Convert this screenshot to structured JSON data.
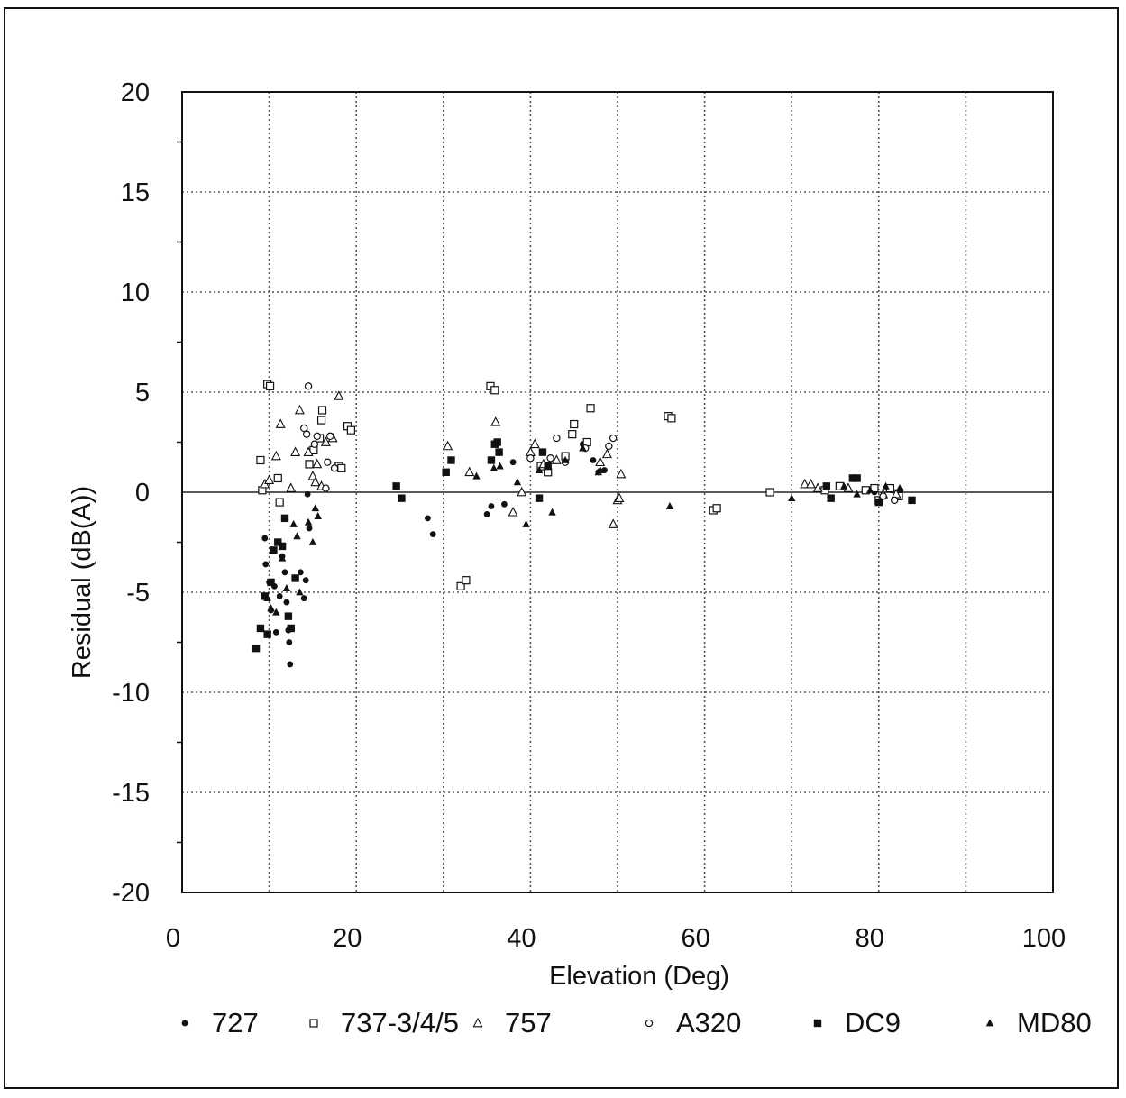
{
  "chart_data": {
    "type": "scatter",
    "title": "",
    "xlabel": "Elevation (Deg)",
    "ylabel": "Residual (dB(A))",
    "xlim": [
      0,
      100
    ],
    "ylim": [
      -20,
      20
    ],
    "x_ticks": [
      0,
      20,
      40,
      60,
      80,
      100
    ],
    "y_ticks": [
      20,
      15,
      10,
      5,
      0,
      -5,
      -10,
      -15,
      -20
    ],
    "grid": true,
    "legend_position": "bottom",
    "series": [
      {
        "name": "727",
        "marker": "small-filled-circle",
        "points": [
          [
            9.5,
            -2.3
          ],
          [
            9.6,
            -3.6
          ],
          [
            10.0,
            -4.5
          ],
          [
            10.2,
            -5.9
          ],
          [
            10.6,
            -4.7
          ],
          [
            10.8,
            -7.0
          ],
          [
            11.2,
            -5.2
          ],
          [
            11.5,
            -3.2
          ],
          [
            11.8,
            -4.0
          ],
          [
            12.0,
            -5.5
          ],
          [
            12.2,
            -6.9
          ],
          [
            12.3,
            -7.5
          ],
          [
            12.4,
            -8.6
          ],
          [
            13.6,
            -4.0
          ],
          [
            14.0,
            -5.3
          ],
          [
            14.2,
            -4.4
          ],
          [
            14.4,
            -0.1
          ],
          [
            14.6,
            -1.8
          ],
          [
            28.2,
            -1.3
          ],
          [
            28.8,
            -2.1
          ],
          [
            35.0,
            -1.1
          ],
          [
            35.5,
            -0.7
          ],
          [
            37.0,
            -0.6
          ],
          [
            38.0,
            1.5
          ],
          [
            42.0,
            1.1
          ],
          [
            46.0,
            2.4
          ],
          [
            47.2,
            1.6
          ],
          [
            47.8,
            1.0
          ],
          [
            48.5,
            1.1
          ],
          [
            75.8,
            0.3
          ],
          [
            79.5,
            0.0
          ],
          [
            81.5,
            0.1
          ],
          [
            82.5,
            0.1
          ]
        ]
      },
      {
        "name": "737-3/4/5",
        "marker": "open-square",
        "points": [
          [
            9.0,
            1.6
          ],
          [
            9.2,
            0.1
          ],
          [
            9.8,
            5.4
          ],
          [
            10.1,
            5.3
          ],
          [
            11.0,
            0.7
          ],
          [
            11.2,
            -0.5
          ],
          [
            14.6,
            1.4
          ],
          [
            15.1,
            2.1
          ],
          [
            15.8,
            2.7
          ],
          [
            16.0,
            3.6
          ],
          [
            16.1,
            4.1
          ],
          [
            18.0,
            1.3
          ],
          [
            18.3,
            1.2
          ],
          [
            19.0,
            3.3
          ],
          [
            19.4,
            3.1
          ],
          [
            32.0,
            -4.7
          ],
          [
            32.6,
            -4.4
          ],
          [
            35.4,
            5.3
          ],
          [
            35.9,
            5.1
          ],
          [
            41.2,
            1.3
          ],
          [
            42.0,
            1.0
          ],
          [
            44.0,
            1.8
          ],
          [
            44.8,
            2.9
          ],
          [
            45.0,
            3.4
          ],
          [
            46.5,
            2.5
          ],
          [
            46.9,
            4.2
          ],
          [
            55.8,
            3.8
          ],
          [
            56.2,
            3.7
          ],
          [
            61.0,
            -0.9
          ],
          [
            61.4,
            -0.8
          ],
          [
            67.5,
            0.0
          ],
          [
            73.8,
            0.1
          ],
          [
            75.5,
            0.3
          ],
          [
            78.5,
            0.1
          ],
          [
            79.5,
            0.2
          ],
          [
            80.0,
            -0.4
          ],
          [
            81.3,
            0.2
          ],
          [
            82.3,
            -0.2
          ]
        ]
      },
      {
        "name": "757",
        "marker": "open-triangle",
        "points": [
          [
            9.5,
            0.4
          ],
          [
            10.0,
            0.6
          ],
          [
            10.8,
            1.8
          ],
          [
            11.3,
            3.4
          ],
          [
            12.5,
            0.2
          ],
          [
            13.0,
            2.0
          ],
          [
            13.5,
            4.1
          ],
          [
            14.5,
            2.0
          ],
          [
            15.0,
            0.8
          ],
          [
            15.3,
            0.5
          ],
          [
            15.5,
            1.4
          ],
          [
            16.0,
            0.3
          ],
          [
            16.5,
            2.5
          ],
          [
            17.3,
            2.7
          ],
          [
            18.0,
            4.8
          ],
          [
            30.5,
            2.3
          ],
          [
            33.0,
            1.0
          ],
          [
            36.0,
            3.5
          ],
          [
            38.0,
            -1.0
          ],
          [
            39.0,
            0.0
          ],
          [
            40.0,
            2.0
          ],
          [
            40.5,
            2.4
          ],
          [
            41.5,
            1.4
          ],
          [
            43.0,
            1.6
          ],
          [
            48.0,
            1.5
          ],
          [
            48.8,
            1.9
          ],
          [
            49.5,
            -1.6
          ],
          [
            50.0,
            -0.4
          ],
          [
            50.2,
            -0.3
          ],
          [
            50.4,
            0.9
          ],
          [
            71.5,
            0.4
          ],
          [
            72.2,
            0.4
          ],
          [
            73.0,
            0.2
          ],
          [
            76.5,
            0.2
          ],
          [
            80.5,
            -0.1
          ],
          [
            82.0,
            -0.1
          ]
        ]
      },
      {
        "name": "A320",
        "marker": "small-open-circle",
        "points": [
          [
            14.0,
            3.2
          ],
          [
            14.3,
            2.9
          ],
          [
            14.5,
            5.3
          ],
          [
            15.2,
            2.4
          ],
          [
            15.5,
            2.8
          ],
          [
            16.5,
            0.2
          ],
          [
            16.7,
            1.5
          ],
          [
            17.0,
            2.8
          ],
          [
            17.5,
            1.2
          ],
          [
            40.0,
            1.7
          ],
          [
            42.3,
            1.7
          ],
          [
            43.0,
            2.7
          ],
          [
            44.0,
            1.5
          ],
          [
            46.3,
            2.2
          ],
          [
            49.0,
            2.3
          ],
          [
            49.5,
            2.7
          ],
          [
            80.5,
            -0.2
          ],
          [
            81.8,
            -0.4
          ]
        ]
      },
      {
        "name": "DC9",
        "marker": "filled-square",
        "points": [
          [
            8.5,
            -7.8
          ],
          [
            9.0,
            -6.8
          ],
          [
            9.5,
            -5.2
          ],
          [
            9.8,
            -7.1
          ],
          [
            10.2,
            -4.5
          ],
          [
            10.5,
            -2.9
          ],
          [
            11.0,
            -2.5
          ],
          [
            11.5,
            -2.7
          ],
          [
            11.8,
            -1.3
          ],
          [
            12.2,
            -6.2
          ],
          [
            12.5,
            -6.8
          ],
          [
            13.0,
            -4.3
          ],
          [
            24.6,
            0.3
          ],
          [
            25.2,
            -0.3
          ],
          [
            30.3,
            1.0
          ],
          [
            30.9,
            1.6
          ],
          [
            35.5,
            1.6
          ],
          [
            35.9,
            2.4
          ],
          [
            36.2,
            2.5
          ],
          [
            36.4,
            2.0
          ],
          [
            41.0,
            -0.3
          ],
          [
            41.4,
            2.0
          ],
          [
            42.0,
            1.3
          ],
          [
            74.0,
            0.3
          ],
          [
            74.5,
            -0.3
          ],
          [
            77.0,
            0.7
          ],
          [
            77.5,
            0.7
          ],
          [
            80.0,
            -0.5
          ],
          [
            83.8,
            -0.4
          ]
        ]
      },
      {
        "name": "MD80",
        "marker": "small-filled-triangle",
        "points": [
          [
            9.8,
            -5.3
          ],
          [
            10.2,
            -5.8
          ],
          [
            10.8,
            -6.0
          ],
          [
            11.5,
            -3.3
          ],
          [
            12.0,
            -4.8
          ],
          [
            12.8,
            -1.6
          ],
          [
            13.2,
            -2.2
          ],
          [
            13.5,
            -5.0
          ],
          [
            14.5,
            -1.5
          ],
          [
            15.0,
            -2.5
          ],
          [
            15.3,
            -0.8
          ],
          [
            15.6,
            -1.2
          ],
          [
            33.8,
            0.8
          ],
          [
            35.8,
            1.2
          ],
          [
            36.5,
            1.3
          ],
          [
            38.5,
            0.5
          ],
          [
            39.5,
            -1.6
          ],
          [
            41.0,
            1.1
          ],
          [
            42.5,
            -1.0
          ],
          [
            44.0,
            1.6
          ],
          [
            46.0,
            2.2
          ],
          [
            47.8,
            1.0
          ],
          [
            48.0,
            1.1
          ],
          [
            56.0,
            -0.7
          ],
          [
            70.0,
            -0.3
          ],
          [
            76.0,
            0.3
          ],
          [
            77.5,
            -0.1
          ],
          [
            79.0,
            0.1
          ],
          [
            80.8,
            0.3
          ],
          [
            82.4,
            0.2
          ]
        ]
      }
    ],
    "legend": [
      {
        "label": "727",
        "marker": "small-filled-circle"
      },
      {
        "label": "737-3/4/5",
        "marker": "open-square"
      },
      {
        "label": "757",
        "marker": "open-triangle"
      },
      {
        "label": "A320",
        "marker": "small-open-circle"
      },
      {
        "label": "DC9",
        "marker": "filled-square"
      },
      {
        "label": "MD80",
        "marker": "small-filled-triangle"
      }
    ]
  }
}
